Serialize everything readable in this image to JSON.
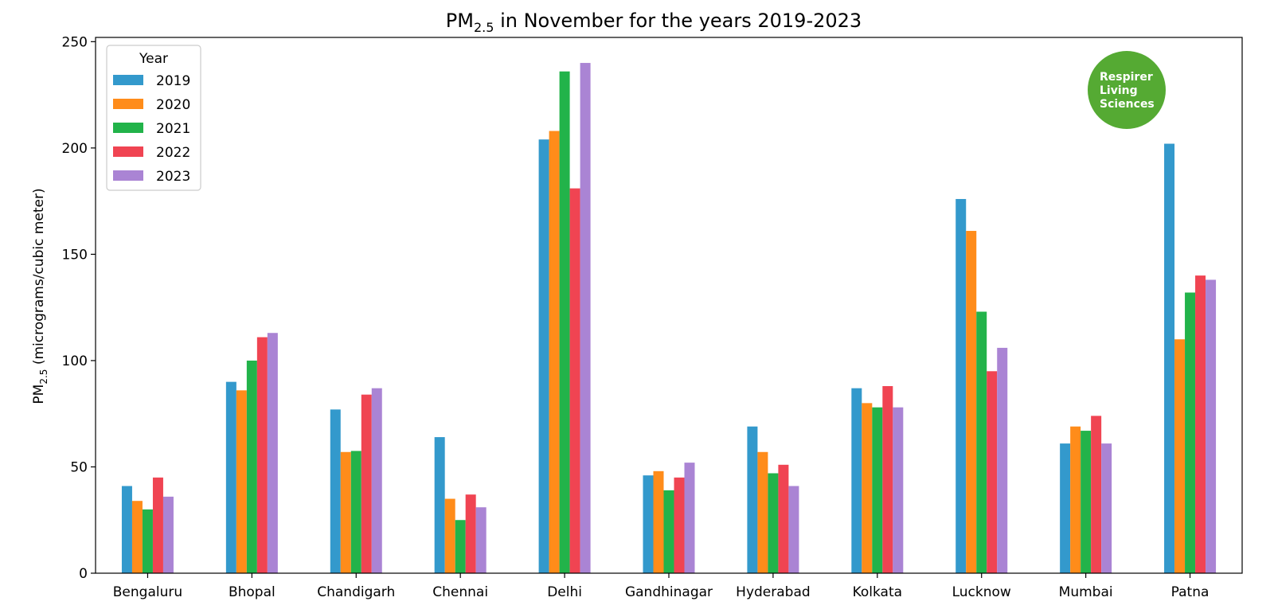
{
  "chart_data": {
    "type": "bar",
    "title": {
      "prefix": "PM",
      "subscript": "2.5",
      "suffix": " in November for the years 2019-2023"
    },
    "xlabel": "",
    "ylabel": {
      "prefix": "PM",
      "subscript": "2.5",
      "suffix": " (micrograms/cubic meter)"
    },
    "ylim": [
      0,
      252
    ],
    "yticks": [
      0,
      50,
      100,
      150,
      200,
      250
    ],
    "grid": false,
    "categories": [
      "Bengaluru",
      "Bhopal",
      "Chandigarh",
      "Chennai",
      "Delhi",
      "Gandhinagar",
      "Hyderabad",
      "Kolkata",
      "Lucknow",
      "Mumbai",
      "Patna"
    ],
    "legend": {
      "title": "Year",
      "placement": "top-left"
    },
    "series": [
      {
        "name": "2019",
        "color": "#3399cc",
        "values": [
          41,
          90,
          77,
          64,
          204,
          46,
          69,
          87,
          176,
          61,
          202
        ]
      },
      {
        "name": "2020",
        "color": "#ff8c1a",
        "values": [
          34,
          86,
          57,
          35,
          208,
          48,
          57,
          80,
          161,
          69,
          110
        ]
      },
      {
        "name": "2021",
        "color": "#22b34a",
        "values": [
          30,
          100,
          57.5,
          25,
          236,
          39,
          47,
          78,
          123,
          67,
          132
        ]
      },
      {
        "name": "2022",
        "color": "#f04452",
        "values": [
          45,
          111,
          84,
          37,
          181,
          45,
          51,
          88,
          95,
          74,
          140
        ]
      },
      {
        "name": "2023",
        "color": "#aa84d4",
        "values": [
          36,
          113,
          87,
          31,
          240,
          52,
          41,
          78,
          106,
          61,
          138
        ]
      }
    ]
  },
  "watermark": {
    "lines": [
      "Respirer",
      "Living",
      "Sciences"
    ],
    "color": "#55aa33"
  }
}
